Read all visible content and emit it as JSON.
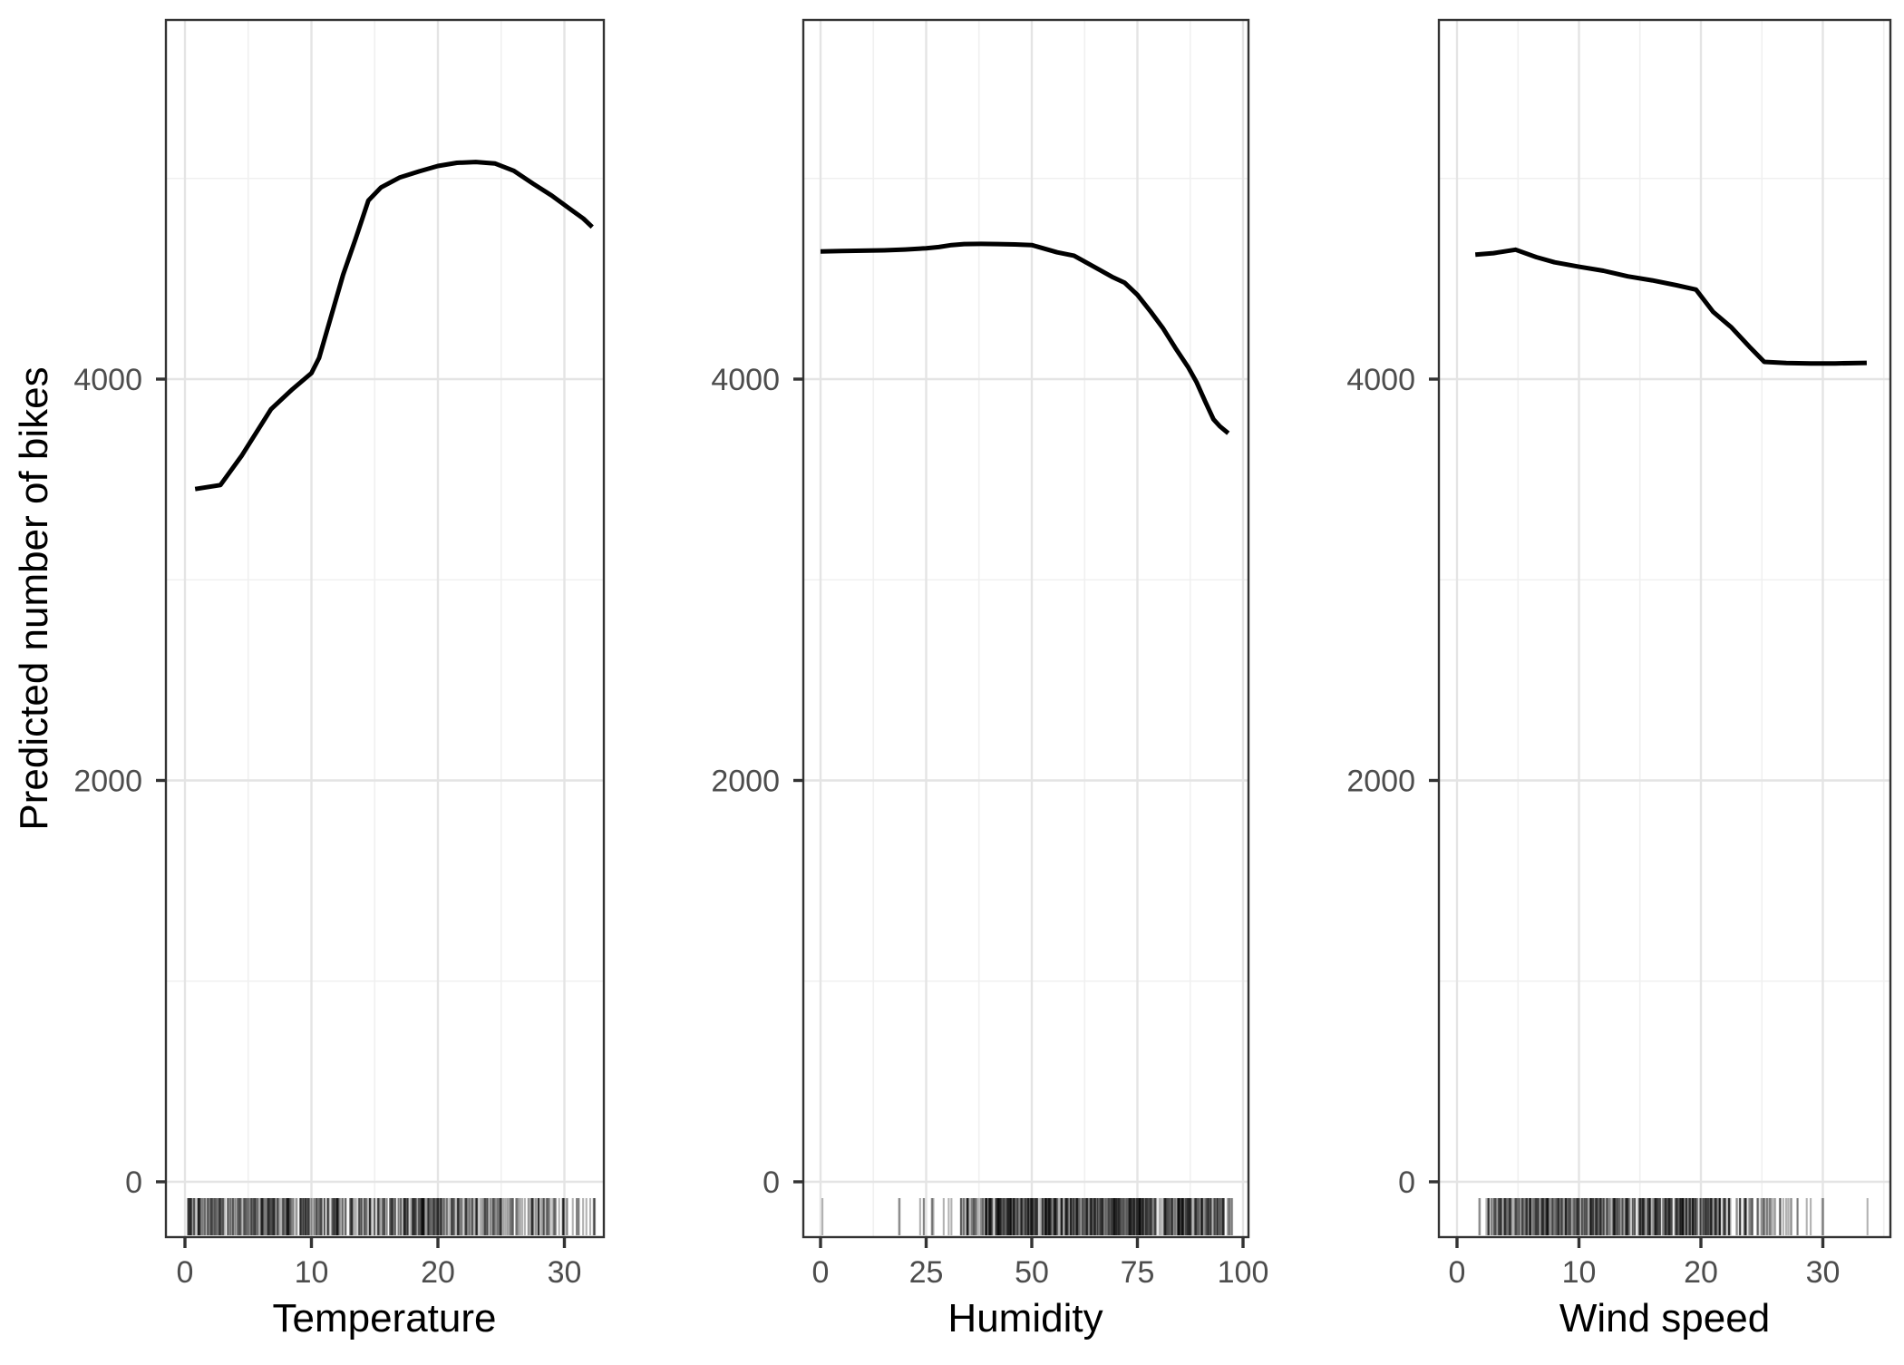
{
  "figure": {
    "y_axis_title": "Predicted number of bikes",
    "background_color": "#FFFFFF",
    "curve_color": "#000000",
    "panel_border_color": "#333333",
    "grid_major_color": "#E4E4E4",
    "grid_minor_color": "#F0F0F0",
    "tick_mark_color": "#333333",
    "tick_label_color": "#4D4D4D",
    "axis_title_color": "#000000",
    "rug_color": "rgba(0,0,0,0.30)"
  },
  "chart_data": [
    {
      "type": "line",
      "id": "temperature",
      "title": "",
      "xlabel": "Temperature",
      "ylabel": "Predicted number of bikes",
      "xlim": [
        -1.5,
        33.1
      ],
      "ylim": [
        -280,
        5790
      ],
      "x_ticks": [
        0,
        10,
        20,
        30
      ],
      "x_minor": [
        5,
        15,
        25
      ],
      "y_ticks": [
        0,
        2000,
        4000
      ],
      "y_minor": [
        1000,
        3000,
        5000
      ],
      "grid": true,
      "legend": "none",
      "series": [
        {
          "name": "partial_dependence",
          "x": [
            0.8,
            2.8,
            4.5,
            6.8,
            8.5,
            10.0,
            10.6,
            11.5,
            12.5,
            13.5,
            14.5,
            15.5,
            17.0,
            18.5,
            20.0,
            21.5,
            23.0,
            24.5,
            26.0,
            27.5,
            29.0,
            30.5,
            31.5,
            32.2
          ],
          "y": [
            3452,
            3472,
            3620,
            3850,
            3950,
            4030,
            4105,
            4300,
            4520,
            4700,
            4890,
            4955,
            5005,
            5035,
            5062,
            5078,
            5082,
            5075,
            5038,
            4975,
            4915,
            4845,
            4800,
            4758
          ]
        }
      ],
      "rug_segments": [
        [
          0.2,
          3.3,
          60
        ],
        [
          3.3,
          10.5,
          135
        ],
        [
          10.5,
          19.8,
          165
        ],
        [
          19.8,
          25.5,
          90
        ],
        [
          25.5,
          29.1,
          42
        ],
        [
          29.1,
          31.3,
          18
        ],
        [
          31.3,
          32.7,
          7
        ]
      ],
      "rug_seed": 11
    },
    {
      "type": "line",
      "id": "humidity",
      "title": "",
      "xlabel": "Humidity",
      "ylabel": "Predicted number of bikes",
      "xlim": [
        -4.1,
        101.3
      ],
      "ylim": [
        -280,
        5790
      ],
      "x_ticks": [
        0,
        25,
        50,
        75,
        100
      ],
      "x_minor": [
        12.5,
        37.5,
        62.5,
        87.5
      ],
      "y_ticks": [
        0,
        2000,
        4000
      ],
      "y_minor": [
        1000,
        3000,
        5000
      ],
      "grid": true,
      "legend": "none",
      "series": [
        {
          "name": "partial_dependence",
          "x": [
            0,
            5,
            10,
            15,
            20,
            25,
            28,
            31,
            34,
            38,
            42,
            46,
            50,
            53,
            56,
            60,
            63,
            66,
            69,
            72,
            75,
            78,
            81,
            84,
            87,
            89,
            91,
            93,
            94.5,
            96.5
          ],
          "y": [
            4636,
            4638,
            4640,
            4642,
            4646,
            4652,
            4658,
            4668,
            4673,
            4674,
            4673,
            4671,
            4668,
            4650,
            4632,
            4615,
            4580,
            4545,
            4510,
            4480,
            4420,
            4340,
            4255,
            4155,
            4060,
            3985,
            3890,
            3800,
            3765,
            3730
          ]
        }
      ],
      "rug_segments": [
        [
          0.3,
          0.8,
          1
        ],
        [
          18.5,
          19.2,
          2
        ],
        [
          23.5,
          32.5,
          9
        ],
        [
          32.5,
          39,
          28
        ],
        [
          39,
          51,
          120
        ],
        [
          51,
          89.5,
          330
        ],
        [
          89.5,
          95.5,
          45
        ],
        [
          95.5,
          98,
          6
        ]
      ],
      "rug_seed": 22
    },
    {
      "type": "line",
      "id": "wind_speed",
      "title": "",
      "xlabel": "Wind speed",
      "ylabel": "Predicted number of bikes",
      "xlim": [
        -1.5,
        35.5
      ],
      "ylim": [
        -280,
        5790
      ],
      "x_ticks": [
        0,
        10,
        20,
        30
      ],
      "x_minor": [
        5,
        15,
        25,
        35
      ],
      "y_ticks": [
        0,
        2000,
        4000
      ],
      "y_minor": [
        1000,
        3000,
        5000
      ],
      "grid": true,
      "legend": "none",
      "series": [
        {
          "name": "partial_dependence",
          "x": [
            1.5,
            3.0,
            4.8,
            6.5,
            8.0,
            10.0,
            12.0,
            14.0,
            16.0,
            18.0,
            19.6,
            21.0,
            22.5,
            24.0,
            25.2,
            27.0,
            29.0,
            31.0,
            33.6
          ],
          "y": [
            4620,
            4628,
            4645,
            4608,
            4582,
            4560,
            4540,
            4512,
            4492,
            4468,
            4446,
            4335,
            4258,
            4160,
            4086,
            4080,
            4078,
            4078,
            4081
          ]
        }
      ],
      "rug_segments": [
        [
          1.4,
          1.9,
          2
        ],
        [
          2.4,
          9.9,
          150
        ],
        [
          9.9,
          19.5,
          205
        ],
        [
          19.5,
          22.5,
          60
        ],
        [
          22.5,
          25.8,
          32
        ],
        [
          25.8,
          28.4,
          13
        ],
        [
          28.4,
          30.1,
          4
        ],
        [
          33.6,
          34.0,
          1
        ]
      ],
      "rug_seed": 33
    }
  ]
}
